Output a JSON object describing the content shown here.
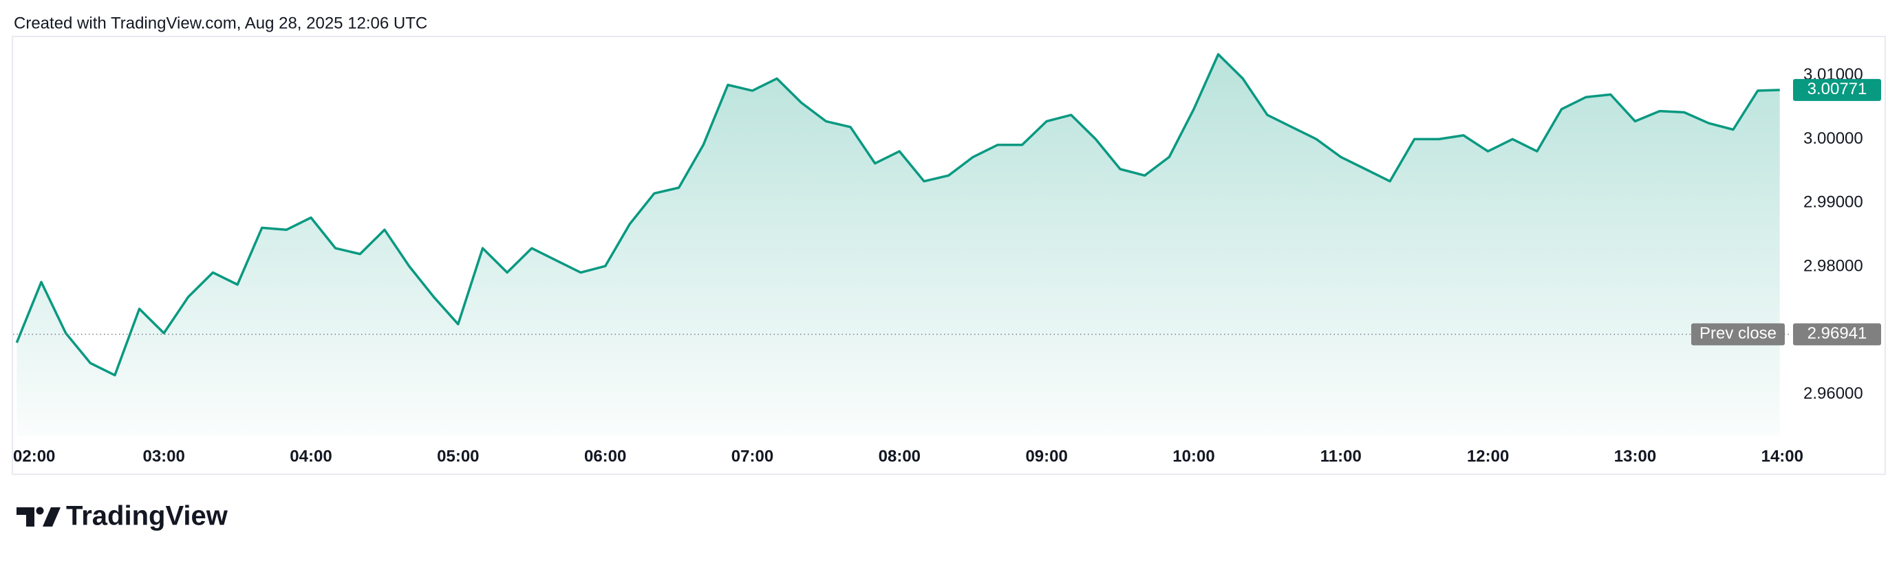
{
  "header": {
    "text": "Created with TradingView.com, Aug 28, 2025 12:06 UTC"
  },
  "chart_data": {
    "type": "line",
    "color": "#089981",
    "area": true,
    "x": [
      120,
      130,
      140,
      150,
      160,
      170,
      180,
      190,
      200,
      210,
      220,
      230,
      240,
      250,
      260,
      270,
      280,
      290,
      300,
      310,
      320,
      330,
      340,
      350,
      360,
      370,
      380,
      390,
      400,
      410,
      420,
      430,
      440,
      450,
      460,
      470,
      480,
      490,
      500,
      510,
      520,
      530,
      540,
      550,
      560,
      570,
      580,
      590,
      600,
      610,
      620,
      630,
      640,
      650,
      660,
      670,
      680,
      690,
      700,
      710,
      720,
      730,
      740,
      750,
      760,
      770,
      780,
      790,
      800,
      810,
      820,
      830,
      839
    ],
    "values": [
      2.9681,
      2.9776,
      2.9696,
      2.9649,
      2.963,
      2.9734,
      2.9696,
      2.9753,
      2.9791,
      2.9772,
      2.9861,
      2.9858,
      2.9877,
      2.9829,
      2.982,
      2.9858,
      2.9801,
      2.9753,
      2.971,
      2.9829,
      2.9791,
      2.9829,
      2.981,
      2.9791,
      2.9801,
      2.9867,
      2.9915,
      2.9924,
      2.9991,
      3.0085,
      3.0076,
      3.0095,
      3.0057,
      3.0028,
      3.0019,
      2.9962,
      2.9981,
      2.9934,
      2.9943,
      2.9972,
      2.9991,
      2.9991,
      3.0028,
      3.0038,
      3.0,
      2.9953,
      2.9943,
      2.9972,
      3.0047,
      3.0133,
      3.0095,
      3.0038,
      3.0019,
      3.0,
      2.9972,
      2.9953,
      2.9934,
      3.0,
      3.0,
      3.0006,
      2.9981,
      3.0,
      2.9981,
      3.0047,
      3.0066,
      3.007,
      3.0028,
      3.0044,
      3.0042,
      3.0025,
      3.0015,
      3.0076,
      3.00771
    ],
    "xlim": [
      118.5,
      843
    ],
    "xticks": [
      {
        "value": 120,
        "label": "02:00"
      },
      {
        "value": 180,
        "label": "03:00"
      },
      {
        "value": 240,
        "label": "04:00"
      },
      {
        "value": 300,
        "label": "05:00"
      },
      {
        "value": 360,
        "label": "06:00"
      },
      {
        "value": 420,
        "label": "07:00"
      },
      {
        "value": 480,
        "label": "08:00"
      },
      {
        "value": 540,
        "label": "09:00"
      },
      {
        "value": 600,
        "label": "10:00"
      },
      {
        "value": 660,
        "label": "11:00"
      },
      {
        "value": 720,
        "label": "12:00"
      },
      {
        "value": 780,
        "label": "13:00"
      },
      {
        "value": 840,
        "label": "14:00"
      }
    ],
    "ylim": [
      2.9535,
      3.0161
    ],
    "yticks": [
      {
        "value": 2.96,
        "label": "2.96000"
      },
      {
        "value": 2.98,
        "label": "2.98000"
      },
      {
        "value": 2.99,
        "label": "2.99000"
      },
      {
        "value": 3.0,
        "label": "3.00000"
      },
      {
        "value": 3.01,
        "label": "3.01000"
      }
    ],
    "prev_close": {
      "label": "Prev close",
      "value": 2.96941
    }
  },
  "footer": {
    "logo": "TradingView"
  }
}
